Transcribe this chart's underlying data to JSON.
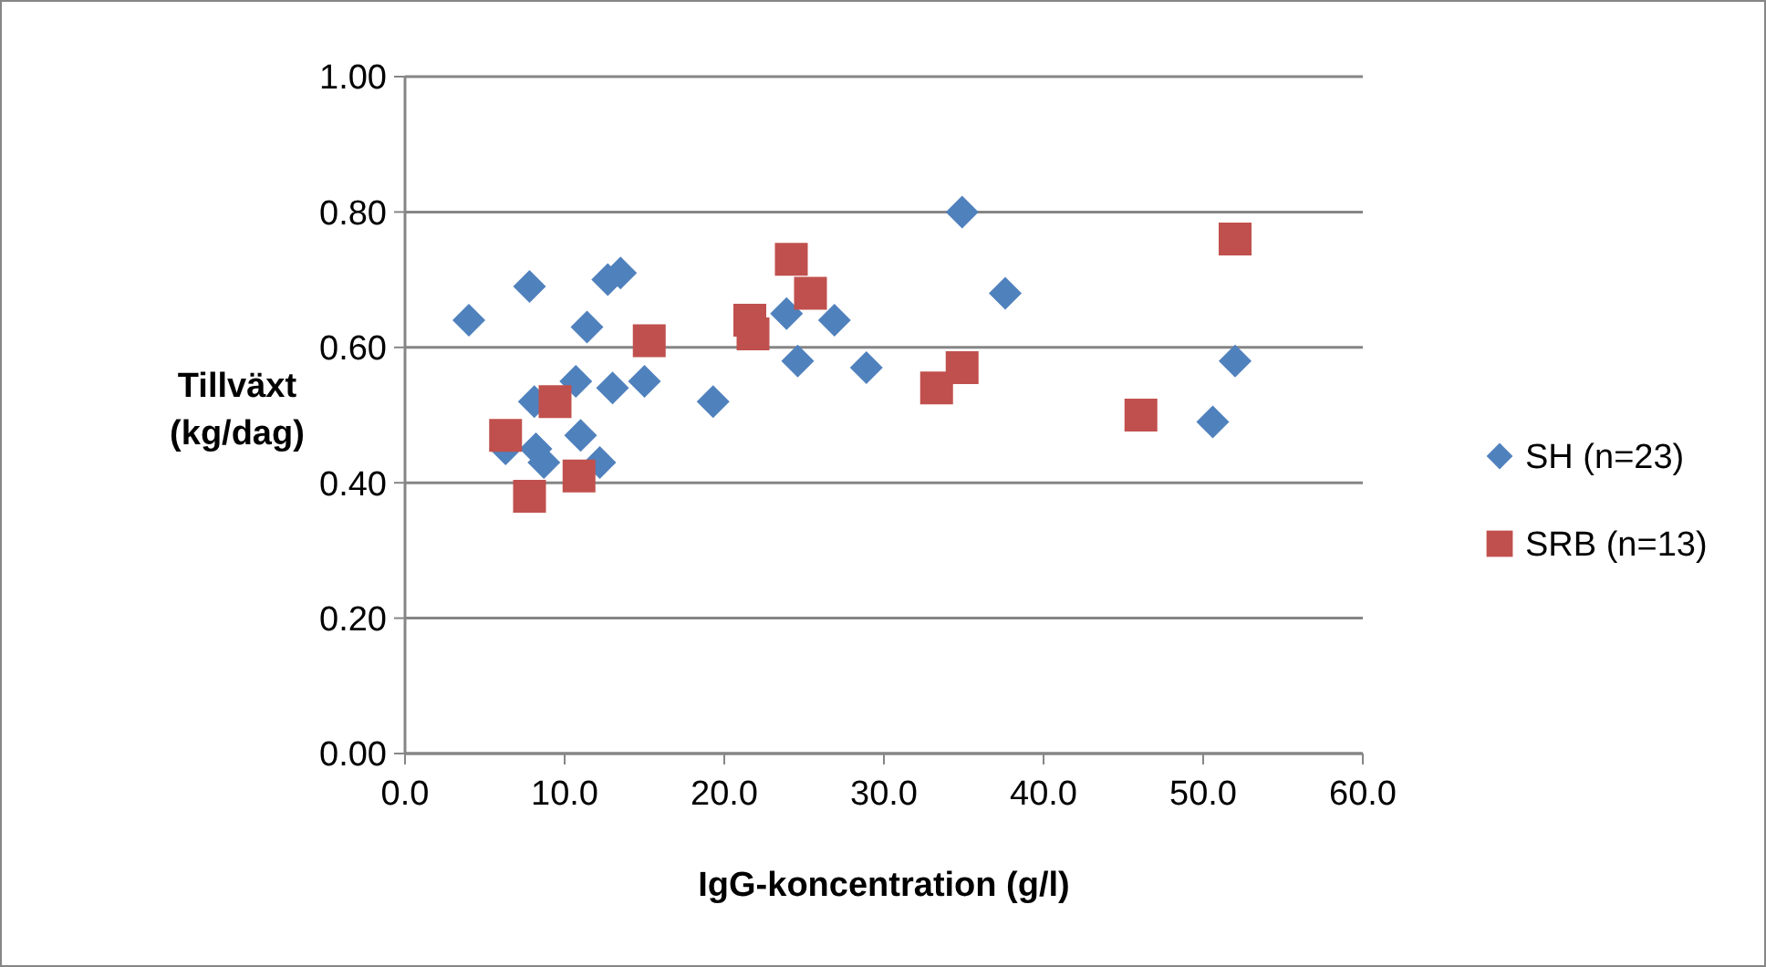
{
  "chart_data": {
    "type": "scatter",
    "xlabel": "IgG-koncentration (g/l)",
    "ylabel": "Tillväxt (kg/dag)",
    "xlim": [
      0,
      60
    ],
    "ylim": [
      0,
      1
    ],
    "xticks": [
      {
        "value": 0,
        "label": "0.0"
      },
      {
        "value": 10,
        "label": "10.0"
      },
      {
        "value": 20,
        "label": "20.0"
      },
      {
        "value": 30,
        "label": "30.0"
      },
      {
        "value": 40,
        "label": "40.0"
      },
      {
        "value": 50,
        "label": "50.0"
      },
      {
        "value": 60,
        "label": "60.0"
      }
    ],
    "yticks": [
      {
        "value": 0,
        "label": "0.00"
      },
      {
        "value": 0.2,
        "label": "0.20"
      },
      {
        "value": 0.4,
        "label": "0.40"
      },
      {
        "value": 0.6,
        "label": "0.60"
      },
      {
        "value": 0.8,
        "label": "0.80"
      },
      {
        "value": 1,
        "label": "1.00"
      }
    ],
    "grid": "y",
    "legend": "right",
    "series": [
      {
        "name": "SH (n=23)",
        "color": "#4f81bd",
        "marker": "diamond",
        "x": [
          4.0,
          7.8,
          12.7,
          13.5,
          11.4,
          10.7,
          8.1,
          13.0,
          15.0,
          11.0,
          8.2,
          6.3,
          8.7,
          12.2,
          19.3,
          23.9,
          24.6,
          26.9,
          28.9,
          34.9,
          37.6,
          50.6,
          52.0
        ],
        "values": [
          0.64,
          0.69,
          0.7,
          0.71,
          0.63,
          0.55,
          0.52,
          0.54,
          0.55,
          0.47,
          0.45,
          0.45,
          0.43,
          0.43,
          0.52,
          0.65,
          0.58,
          0.64,
          0.57,
          0.8,
          0.68,
          0.49,
          0.58
        ]
      },
      {
        "name": "SRB (n=13)",
        "color": "#c0504d",
        "marker": "square",
        "x": [
          15.3,
          9.4,
          6.3,
          10.9,
          7.8,
          21.6,
          21.8,
          24.2,
          25.4,
          33.3,
          34.9,
          46.1,
          52.0
        ],
        "values": [
          0.61,
          0.52,
          0.47,
          0.41,
          0.38,
          0.64,
          0.62,
          0.73,
          0.68,
          0.54,
          0.57,
          0.5,
          0.76
        ]
      }
    ]
  }
}
